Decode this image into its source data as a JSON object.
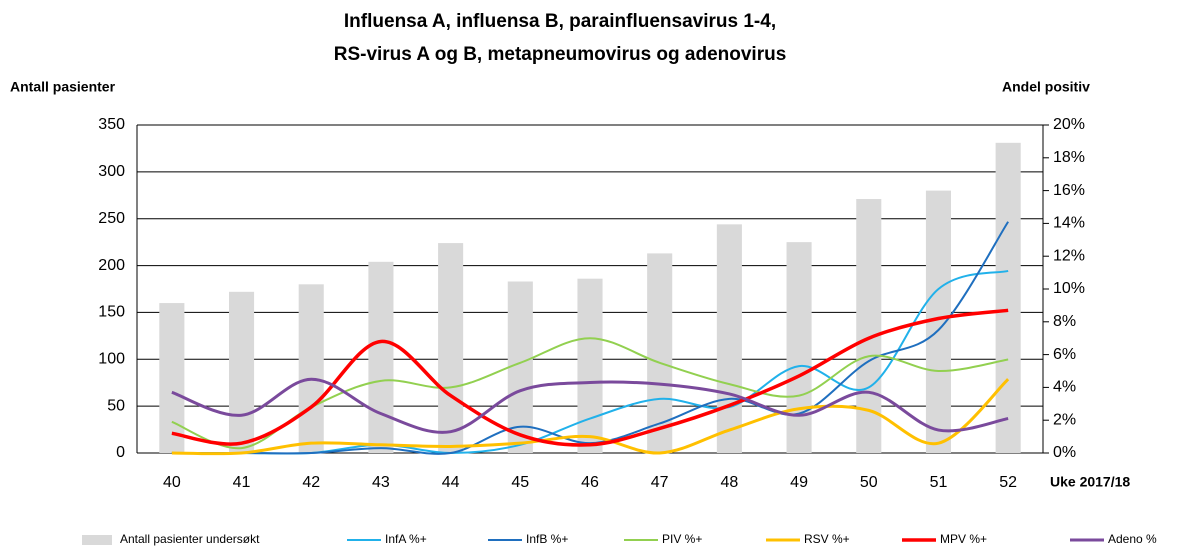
{
  "chart_data": {
    "type": "bar_line",
    "title": [
      "Influensa A, influensa B, parainfluensavirus 1-4,",
      "RS-virus A og B, metapneumovirus og adenovirus"
    ],
    "y_label": "Antall pasienter",
    "y2_label": "Andel positiv",
    "x_label": "Uke 2017/18",
    "categories": [
      "40",
      "41",
      "42",
      "43",
      "44",
      "45",
      "46",
      "47",
      "48",
      "49",
      "50",
      "51",
      "52"
    ],
    "ylim": [
      0,
      350
    ],
    "yticks": [
      0,
      50,
      100,
      150,
      200,
      250,
      300,
      350
    ],
    "y2lim": [
      0,
      20
    ],
    "y2ticks": [
      {
        "value": 0,
        "label": "0%"
      },
      {
        "value": 2,
        "label": "2%"
      },
      {
        "value": 4,
        "label": "4%"
      },
      {
        "value": 6,
        "label": "6%"
      },
      {
        "value": 8,
        "label": "8%"
      },
      {
        "value": 10,
        "label": "10%"
      },
      {
        "value": 12,
        "label": "12%"
      },
      {
        "value": 14,
        "label": "14%"
      },
      {
        "value": 16,
        "label": "16%"
      },
      {
        "value": 18,
        "label": "18%"
      },
      {
        "value": 20,
        "label": "20%"
      }
    ],
    "grid": true,
    "series": [
      {
        "name": "Antall pasienter undersøkt",
        "kind": "bar",
        "color": "#d9d9d9",
        "values": [
          160,
          172,
          180,
          204,
          224,
          183,
          186,
          213,
          244,
          225,
          271,
          280,
          331
        ]
      },
      {
        "name": "InfA %+",
        "kind": "line",
        "axis": "y2",
        "color": "#21b1ea",
        "width": 2,
        "values": [
          0,
          0,
          0,
          0.5,
          0,
          0.5,
          2.1,
          3.3,
          2.8,
          5.3,
          4.0,
          10.0,
          11.1
        ]
      },
      {
        "name": "InfB %+",
        "kind": "line",
        "axis": "y2",
        "color": "#1f6fbf",
        "width": 2,
        "values": [
          0,
          0,
          0,
          0.3,
          0,
          1.6,
          0.6,
          1.8,
          3.3,
          2.4,
          5.6,
          7.5,
          14.1
        ]
      },
      {
        "name": "PIV %+",
        "kind": "line",
        "axis": "y2",
        "color": "#92d050",
        "width": 2,
        "values": [
          1.9,
          0.3,
          2.8,
          4.4,
          4.0,
          5.5,
          7.0,
          5.5,
          4.2,
          3.5,
          5.9,
          5.0,
          5.7
        ]
      },
      {
        "name": "RSV %+",
        "kind": "line",
        "axis": "y2",
        "color": "#ffc000",
        "width": 3,
        "values": [
          0,
          0,
          0.6,
          0.5,
          0.4,
          0.6,
          1.0,
          0,
          1.4,
          2.7,
          2.6,
          0.6,
          4.5
        ]
      },
      {
        "name": "MPV %+",
        "kind": "line",
        "axis": "y2",
        "color": "#ff0000",
        "width": 3.5,
        "values": [
          1.2,
          0.6,
          2.8,
          6.8,
          3.5,
          1.1,
          0.5,
          1.5,
          2.9,
          4.7,
          7.0,
          8.2,
          8.7
        ]
      },
      {
        "name": "Adeno %",
        "kind": "line",
        "axis": "y2",
        "color": "#7a4a9c",
        "width": 3,
        "values": [
          3.7,
          2.3,
          4.5,
          2.4,
          1.3,
          3.8,
          4.3,
          4.2,
          3.6,
          2.3,
          3.7,
          1.4,
          2.1
        ]
      }
    ]
  }
}
